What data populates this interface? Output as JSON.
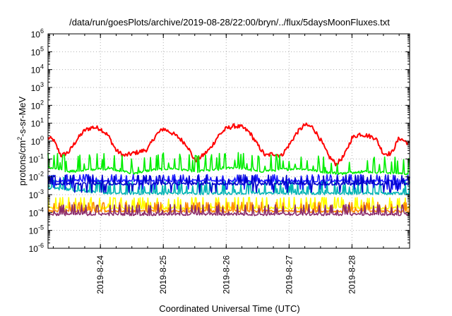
{
  "chart_data": {
    "type": "line",
    "title": "/data/run/goesPlots/archive/2019-08-28/22:00/bryn/../flux/5daysMoonFluxes.txt",
    "xlabel": "Coordinated Universal Time (UTC)",
    "ylabel": {
      "prefix": "protons/cm",
      "sup": "2",
      "suffix": "-s-sr-MeV"
    },
    "yscale": "log",
    "ylim": [
      1e-06,
      1000000.0
    ],
    "xlim": [
      "2019-08-23 04:00",
      "2019-08-28 22:00"
    ],
    "grid": true,
    "legend": "none",
    "y_ticks": [
      {
        "base": "10",
        "exp": "-6",
        "value": 1e-06
      },
      {
        "base": "10",
        "exp": "-5",
        "value": 1e-05
      },
      {
        "base": "10",
        "exp": "-4",
        "value": 0.0001
      },
      {
        "base": "10",
        "exp": "-3",
        "value": 0.001
      },
      {
        "base": "10",
        "exp": "-2",
        "value": 0.01
      },
      {
        "base": "10",
        "exp": "-1",
        "value": 0.1
      },
      {
        "base": "10",
        "exp": "0",
        "value": 1
      },
      {
        "base": "10",
        "exp": "1",
        "value": 10
      },
      {
        "base": "10",
        "exp": "2",
        "value": 100
      },
      {
        "base": "10",
        "exp": "3",
        "value": 1000
      },
      {
        "base": "10",
        "exp": "4",
        "value": 10000
      },
      {
        "base": "10",
        "exp": "5",
        "value": 100000
      },
      {
        "base": "10",
        "exp": "6",
        "value": 1000000
      }
    ],
    "x_ticks": [
      {
        "label": "2019-8-24",
        "value": "2019-08-24 00:00"
      },
      {
        "label": "2019-8-25",
        "value": "2019-08-25 00:00"
      },
      {
        "label": "2019-8-26",
        "value": "2019-08-26 00:00"
      },
      {
        "label": "2019-8-27",
        "value": "2019-08-27 00:00"
      },
      {
        "label": "2019-8-28",
        "value": "2019-08-28 00:00"
      }
    ],
    "series": [
      {
        "color": "#ff0000",
        "base": 1.0,
        "x": [
          "2019-08-23 04:00",
          "2019-08-23 06:00",
          "2019-08-23 09:00",
          "2019-08-23 12:00",
          "2019-08-23 15:00",
          "2019-08-23 18:00",
          "2019-08-23 21:00",
          "2019-08-24 00:00",
          "2019-08-24 03:00",
          "2019-08-24 06:00",
          "2019-08-24 09:00",
          "2019-08-24 12:00",
          "2019-08-24 15:00",
          "2019-08-24 18:00",
          "2019-08-24 21:00",
          "2019-08-25 00:00",
          "2019-08-25 03:00",
          "2019-08-25 06:00",
          "2019-08-25 09:00",
          "2019-08-25 12:00",
          "2019-08-25 15:00",
          "2019-08-25 18:00",
          "2019-08-25 21:00",
          "2019-08-26 00:00",
          "2019-08-26 03:00",
          "2019-08-26 06:00",
          "2019-08-26 09:00",
          "2019-08-26 12:00",
          "2019-08-26 15:00",
          "2019-08-26 18:00",
          "2019-08-26 21:00",
          "2019-08-27 00:00",
          "2019-08-27 03:00",
          "2019-08-27 06:00",
          "2019-08-27 09:00",
          "2019-08-27 12:00",
          "2019-08-27 15:00",
          "2019-08-27 18:00",
          "2019-08-27 21:00",
          "2019-08-28 00:00",
          "2019-08-28 03:00",
          "2019-08-28 06:00",
          "2019-08-28 09:00",
          "2019-08-28 12:00",
          "2019-08-28 15:00",
          "2019-08-28 18:00",
          "2019-08-28 22:00"
        ],
        "y": [
          1.5,
          1.2,
          0.15,
          0.25,
          1.2,
          4,
          6,
          5,
          2,
          0.3,
          0.15,
          0.2,
          0.25,
          0.35,
          2,
          5,
          3,
          1.5,
          0.6,
          0.08,
          0.15,
          0.4,
          2,
          5,
          7,
          6,
          3,
          0.6,
          0.15,
          0.2,
          0.15,
          0.6,
          3,
          8,
          6,
          1.2,
          0.15,
          0.05,
          0.15,
          1.5,
          2.5,
          2,
          1.5,
          0.2,
          0.2,
          1.5,
          0.7
        ]
      },
      {
        "color": "#00ee00",
        "base": 0.012,
        "x": [
          "2019-08-23 04:00",
          "2019-08-23 12:00",
          "2019-08-23 20:00",
          "2019-08-24 04:00",
          "2019-08-24 12:00",
          "2019-08-24 20:00",
          "2019-08-25 04:00",
          "2019-08-25 12:00",
          "2019-08-25 20:00",
          "2019-08-26 04:00",
          "2019-08-26 12:00",
          "2019-08-26 20:00",
          "2019-08-27 04:00",
          "2019-08-27 12:00",
          "2019-08-27 20:00",
          "2019-08-28 04:00",
          "2019-08-28 12:00",
          "2019-08-28 22:00"
        ],
        "y": [
          0.035,
          0.02,
          0.025,
          0.03,
          0.015,
          0.025,
          0.03,
          0.02,
          0.025,
          0.035,
          0.02,
          0.025,
          0.03,
          0.02,
          0.015,
          0.02,
          0.018,
          0.015
        ]
      },
      {
        "color": "#00b4b4",
        "base": 0.0011,
        "x": [
          "2019-08-23 04:00",
          "2019-08-24 04:00",
          "2019-08-25 04:00",
          "2019-08-26 04:00",
          "2019-08-27 04:00",
          "2019-08-28 04:00",
          "2019-08-28 22:00"
        ],
        "y": [
          0.0025,
          0.0012,
          0.0012,
          0.0012,
          0.0012,
          0.0012,
          0.0012
        ]
      },
      {
        "color": "#1e1eff",
        "base": 0.006,
        "x": [
          "2019-08-23 04:00",
          "2019-08-24 04:00",
          "2019-08-25 04:00",
          "2019-08-26 04:00",
          "2019-08-27 04:00",
          "2019-08-28 04:00",
          "2019-08-28 22:00"
        ],
        "y": [
          0.006,
          0.006,
          0.006,
          0.006,
          0.006,
          0.006,
          0.006
        ]
      },
      {
        "color": "#0000cc",
        "base": 0.004,
        "x": [
          "2019-08-23 04:00",
          "2019-08-24 04:00",
          "2019-08-25 04:00",
          "2019-08-26 04:00",
          "2019-08-27 04:00",
          "2019-08-28 04:00",
          "2019-08-28 22:00"
        ],
        "y": [
          0.004,
          0.004,
          0.004,
          0.004,
          0.004,
          0.004,
          0.004
        ]
      },
      {
        "color": "#ffff00",
        "base": 0.00018,
        "x": [
          "2019-08-23 04:00",
          "2019-08-24 04:00",
          "2019-08-25 04:00",
          "2019-08-26 04:00",
          "2019-08-27 04:00",
          "2019-08-28 04:00",
          "2019-08-28 22:00"
        ],
        "y": [
          0.00018,
          0.00018,
          0.00018,
          0.00018,
          0.00018,
          0.00018,
          0.00018
        ]
      },
      {
        "color": "#ff8c00",
        "base": 0.00012,
        "x": [
          "2019-08-23 04:00",
          "2019-08-24 04:00",
          "2019-08-25 04:00",
          "2019-08-26 04:00",
          "2019-08-27 04:00",
          "2019-08-28 04:00",
          "2019-08-28 22:00"
        ],
        "y": [
          0.00012,
          0.00012,
          0.00012,
          0.00012,
          0.00012,
          0.00012,
          0.00012
        ]
      },
      {
        "color": "#8b2a6b",
        "base": 8e-05,
        "x": [
          "2019-08-23 04:00",
          "2019-08-24 04:00",
          "2019-08-25 04:00",
          "2019-08-26 04:00",
          "2019-08-27 04:00",
          "2019-08-28 04:00",
          "2019-08-28 22:00"
        ],
        "y": [
          8e-05,
          8e-05,
          8e-05,
          8e-05,
          8e-05,
          8e-05,
          8e-05
        ]
      }
    ]
  }
}
